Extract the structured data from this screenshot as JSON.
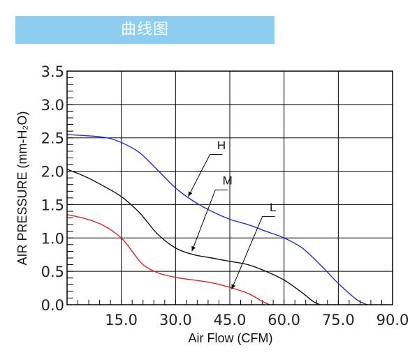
{
  "header": {
    "title": "曲线图",
    "color": "#8ecdf0"
  },
  "chart_data": {
    "type": "line",
    "xlabel": "Air Flow (CFM)",
    "ylabel": "AIR PRESSURE (mm-H₂O)",
    "xlim": [
      0,
      90
    ],
    "ylim": [
      0,
      3.5
    ],
    "x_ticks": [
      "15.0",
      "30.0",
      "45.0",
      "60.0",
      "75.0",
      "90.0"
    ],
    "y_ticks": [
      "0.0",
      "0.5",
      "1.0",
      "1.5",
      "2.0",
      "2.5",
      "3.0",
      "3.5"
    ],
    "grid": true,
    "series": [
      {
        "name": "H",
        "color": "#1f2bd6",
        "points": [
          [
            0,
            2.55
          ],
          [
            10,
            2.51
          ],
          [
            15,
            2.43
          ],
          [
            20,
            2.28
          ],
          [
            25,
            2.02
          ],
          [
            30,
            1.75
          ],
          [
            35,
            1.55
          ],
          [
            40,
            1.4
          ],
          [
            45,
            1.28
          ],
          [
            50,
            1.2
          ],
          [
            55,
            1.1
          ],
          [
            60,
            1.0
          ],
          [
            65,
            0.85
          ],
          [
            70,
            0.6
          ],
          [
            75,
            0.32
          ],
          [
            80,
            0.08
          ],
          [
            83,
            0.0
          ]
        ]
      },
      {
        "name": "M",
        "color": "#111111",
        "points": [
          [
            0,
            2.03
          ],
          [
            5,
            1.92
          ],
          [
            10,
            1.78
          ],
          [
            15,
            1.62
          ],
          [
            20,
            1.38
          ],
          [
            25,
            1.06
          ],
          [
            30,
            0.85
          ],
          [
            35,
            0.75
          ],
          [
            40,
            0.7
          ],
          [
            45,
            0.65
          ],
          [
            50,
            0.6
          ],
          [
            55,
            0.5
          ],
          [
            60,
            0.37
          ],
          [
            65,
            0.18
          ],
          [
            68,
            0.05
          ],
          [
            70,
            0.0
          ]
        ]
      },
      {
        "name": "L",
        "color": "#e02020",
        "points": [
          [
            0,
            1.35
          ],
          [
            5,
            1.29
          ],
          [
            10,
            1.19
          ],
          [
            15,
            1.0
          ],
          [
            18,
            0.8
          ],
          [
            21,
            0.6
          ],
          [
            25,
            0.48
          ],
          [
            30,
            0.41
          ],
          [
            35,
            0.37
          ],
          [
            40,
            0.33
          ],
          [
            45,
            0.26
          ],
          [
            50,
            0.17
          ],
          [
            54,
            0.05
          ],
          [
            56,
            0.0
          ]
        ]
      }
    ]
  }
}
